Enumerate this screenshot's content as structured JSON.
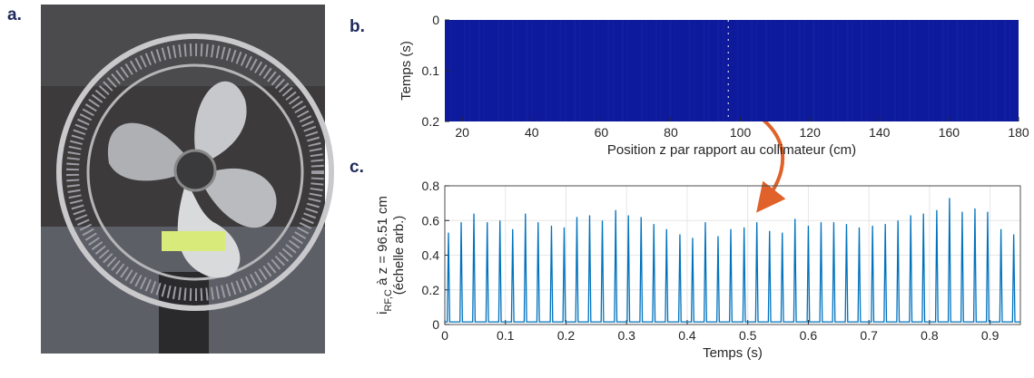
{
  "panel_labels": [
    "a.",
    "b.",
    "c."
  ],
  "chart_data": [
    {
      "type": "heatmap",
      "xlabel": "Position z par rapport au collimateur (cm)",
      "ylabel": "Temps (s)",
      "xlim": [
        15,
        180
      ],
      "xticks": [
        20,
        40,
        60,
        80,
        100,
        120,
        140,
        160,
        180
      ],
      "ylim": [
        0,
        0.2
      ],
      "yticks": [
        0,
        0.1,
        0.2
      ],
      "y_reversed": true,
      "color": "#0d1a9c",
      "marker_z": 96.51
    },
    {
      "type": "line",
      "xlabel": "Temps (s)",
      "ylabel_main": "i",
      "ylabel_sub": "RF,C",
      "ylabel_rest": " à z = 96.51 cm",
      "ylabel_line2": "(échelle arb.)",
      "xlim": [
        0,
        0.95
      ],
      "xticks": [
        0,
        0.1,
        0.2,
        0.3,
        0.4,
        0.5,
        0.6,
        0.7,
        0.8,
        0.9
      ],
      "ylim": [
        0,
        0.8
      ],
      "yticks": [
        0,
        0.2,
        0.4,
        0.6,
        0.8
      ],
      "grid": true,
      "x": [
        0,
        0.004,
        0.006,
        0.008,
        0.025,
        0.027,
        0.029,
        0.046,
        0.048,
        0.05,
        0.068,
        0.07,
        0.072,
        0.089,
        0.091,
        0.093,
        0.11,
        0.112,
        0.114,
        0.131,
        0.133,
        0.135,
        0.152,
        0.154,
        0.156,
        0.174,
        0.176,
        0.178,
        0.195,
        0.197,
        0.199,
        0.216,
        0.218,
        0.22,
        0.237,
        0.239,
        0.241,
        0.258,
        0.26,
        0.262,
        0.28,
        0.282,
        0.284,
        0.301,
        0.303,
        0.305,
        0.322,
        0.324,
        0.326,
        0.343,
        0.345,
        0.347,
        0.364,
        0.366,
        0.368,
        0.386,
        0.388,
        0.39,
        0.407,
        0.409,
        0.411,
        0.428,
        0.43,
        0.432,
        0.449,
        0.451,
        0.453,
        0.47,
        0.472,
        0.474,
        0.492,
        0.494,
        0.496,
        0.513,
        0.515,
        0.517,
        0.534,
        0.536,
        0.538,
        0.555,
        0.557,
        0.559,
        0.576,
        0.578,
        0.58,
        0.598,
        0.6,
        0.602,
        0.619,
        0.621,
        0.623,
        0.64,
        0.642,
        0.644,
        0.661,
        0.663,
        0.665,
        0.682,
        0.684,
        0.686,
        0.704,
        0.706,
        0.708,
        0.725,
        0.727,
        0.729,
        0.746,
        0.748,
        0.75,
        0.767,
        0.769,
        0.771,
        0.788,
        0.79,
        0.792,
        0.81,
        0.812,
        0.814,
        0.831,
        0.833,
        0.835,
        0.852,
        0.854,
        0.856,
        0.873,
        0.875,
        0.877,
        0.894,
        0.896,
        0.898,
        0.916,
        0.918,
        0.92,
        0.937,
        0.939,
        0.941,
        0.95
      ],
      "series": [
        {
          "color": "#0072bd",
          "values": [
            0.015,
            0.015,
            0.53,
            0.015,
            0.015,
            0.59,
            0.015,
            0.015,
            0.64,
            0.015,
            0.015,
            0.59,
            0.015,
            0.015,
            0.6,
            0.015,
            0.015,
            0.55,
            0.015,
            0.015,
            0.64,
            0.015,
            0.015,
            0.59,
            0.015,
            0.015,
            0.57,
            0.015,
            0.015,
            0.56,
            0.015,
            0.015,
            0.62,
            0.015,
            0.015,
            0.63,
            0.015,
            0.015,
            0.6,
            0.015,
            0.015,
            0.66,
            0.015,
            0.015,
            0.63,
            0.015,
            0.015,
            0.62,
            0.015,
            0.015,
            0.58,
            0.015,
            0.015,
            0.55,
            0.015,
            0.015,
            0.52,
            0.015,
            0.015,
            0.5,
            0.015,
            0.015,
            0.59,
            0.015,
            0.015,
            0.51,
            0.015,
            0.015,
            0.55,
            0.015,
            0.015,
            0.56,
            0.015,
            0.015,
            0.59,
            0.015,
            0.015,
            0.54,
            0.015,
            0.015,
            0.53,
            0.015,
            0.015,
            0.61,
            0.015,
            0.015,
            0.57,
            0.015,
            0.015,
            0.59,
            0.015,
            0.015,
            0.59,
            0.015,
            0.015,
            0.58,
            0.015,
            0.015,
            0.56,
            0.015,
            0.015,
            0.57,
            0.015,
            0.015,
            0.58,
            0.015,
            0.015,
            0.6,
            0.015,
            0.015,
            0.63,
            0.015,
            0.015,
            0.64,
            0.015,
            0.015,
            0.66,
            0.015,
            0.015,
            0.73,
            0.015,
            0.015,
            0.65,
            0.015,
            0.015,
            0.67,
            0.015,
            0.015,
            0.65,
            0.015,
            0.015,
            0.55,
            0.015,
            0.015,
            0.52,
            0.015,
            0.015
          ]
        }
      ]
    }
  ]
}
